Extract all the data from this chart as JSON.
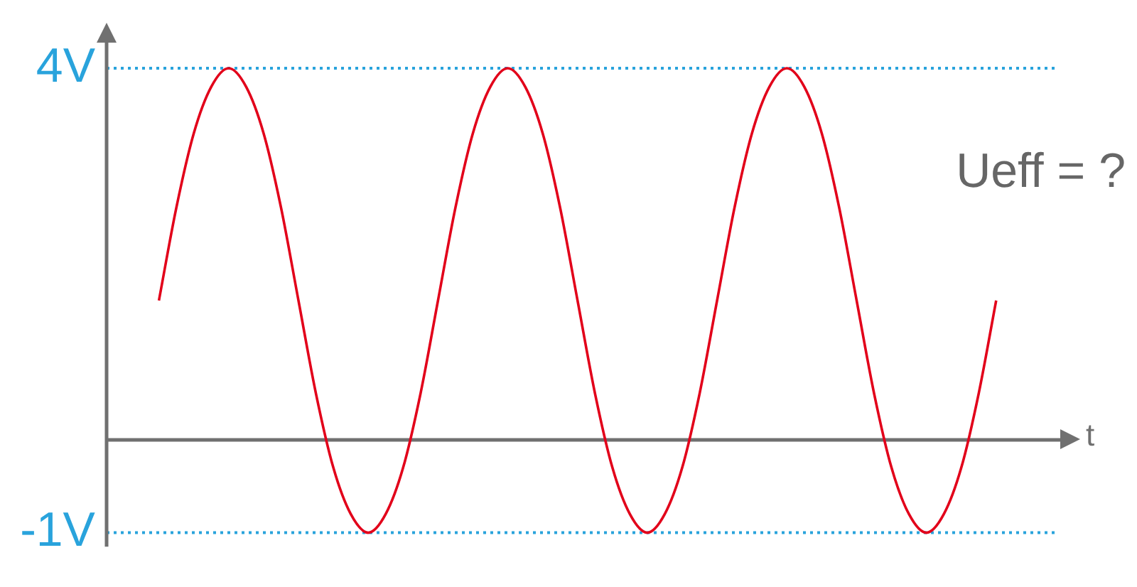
{
  "chart_data": {
    "type": "line",
    "xlabel": "t",
    "annotations": [
      "Ueff = ?"
    ],
    "categories": [
      null,
      null,
      null,
      null,
      null,
      null,
      null,
      null,
      null,
      null,
      null,
      null,
      null,
      null,
      null,
      null,
      null,
      null,
      null,
      null,
      null,
      null,
      null,
      null,
      null,
      null,
      null,
      null,
      null,
      null,
      null,
      null,
      null,
      null,
      null,
      null,
      null,
      null,
      null,
      null,
      null,
      null,
      null,
      null,
      null,
      null,
      null,
      null,
      null,
      null,
      null,
      null,
      null,
      null,
      null,
      null
    ],
    "series": [
      {
        "color": "#e2001a",
        "values": [
          null,
          null,
          null,
          1.5,
          2.5,
          3.3,
          3.8,
          4,
          3.8,
          3.3,
          2.5,
          1.5,
          0.5,
          -0.3,
          -0.8,
          -1,
          -0.8,
          -0.3,
          0.5,
          1.5,
          2.5,
          3.3,
          3.8,
          4,
          3.8,
          3.3,
          2.5,
          1.5,
          0.5,
          -0.3,
          -0.8,
          -1,
          -0.8,
          -0.3,
          0.5,
          1.5,
          2.5,
          3.3,
          3.8,
          4,
          3.8,
          3.3,
          2.5,
          1.5,
          0.5,
          -0.3,
          -0.8,
          -1,
          -0.8,
          -0.3,
          0.5,
          1.5,
          null,
          null,
          null,
          null
        ]
      }
    ],
    "ylim": [
      -1.15,
      4.3
    ],
    "yticks": [
      {
        "value": 4,
        "label": "4V"
      },
      {
        "value": -1,
        "label": "-1V"
      }
    ],
    "ref_lines": [
      {
        "axis": "y",
        "value": 4,
        "color": "#29a3dc",
        "line_style": "dotted"
      },
      {
        "axis": "y",
        "value": -1,
        "color": "#29a3dc",
        "line_style": "dotted"
      }
    ],
    "tick_labels": "y",
    "grid": false,
    "legend": false,
    "marker": "none",
    "line_style": "solid"
  }
}
